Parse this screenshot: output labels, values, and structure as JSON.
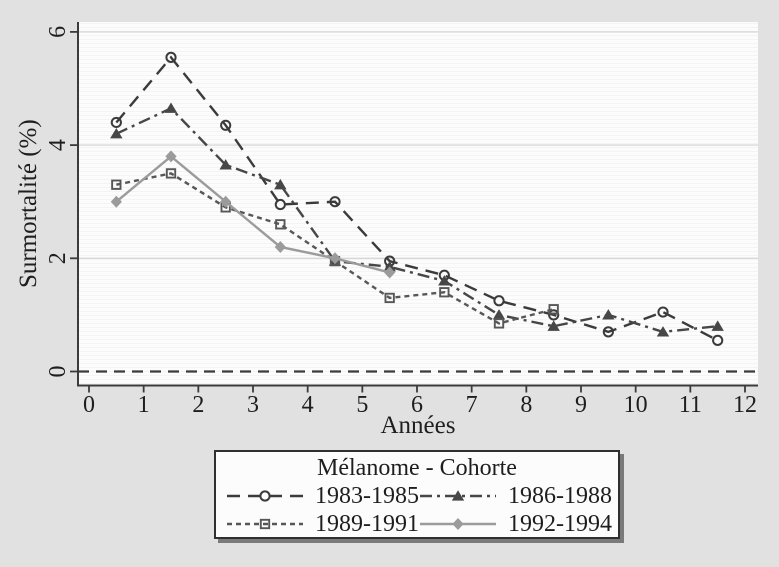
{
  "figure": {
    "background_color": "#e1e1e1",
    "plot_background_color": "#fcfcfc",
    "grid_color": "#d8d8d8",
    "axis_color": "#3b3b3b",
    "text_color": "#1e1e1e",
    "legend_shadow_color": "#7a7a7a"
  },
  "chart_data": {
    "type": "line",
    "title": "",
    "xlabel": "Années",
    "ylabel": "Surmortalité (%)",
    "xlim": [
      -0.2,
      12.2
    ],
    "ylim": [
      -0.25,
      6.25
    ],
    "x_ticks": [
      0,
      1,
      2,
      3,
      4,
      5,
      6,
      7,
      8,
      9,
      10,
      11,
      12
    ],
    "y_ticks": [
      0,
      2,
      4,
      6
    ],
    "grid": "horizontal-at-y-2-4-6",
    "reference_line_y": 0,
    "reference_line_style": "dashed",
    "legend": {
      "title": "Mélanome - Cohorte",
      "position": "below-chart",
      "columns": 2
    },
    "series": [
      {
        "name": "1983-1985",
        "color": "#3b3b3b",
        "line_style": "longdash",
        "marker": "circle-open",
        "x": [
          0.5,
          1.5,
          2.5,
          3.5,
          4.5,
          5.5,
          6.5,
          7.5,
          8.5,
          9.5,
          10.5,
          11.5
        ],
        "y": [
          4.4,
          5.55,
          4.35,
          2.95,
          3.0,
          1.95,
          1.7,
          1.25,
          1.0,
          0.7,
          1.05,
          0.55
        ]
      },
      {
        "name": "1986-1988",
        "color": "#474747",
        "line_style": "dashdot",
        "marker": "triangle-filled",
        "x": [
          0.5,
          1.5,
          2.5,
          3.5,
          4.5,
          5.5,
          6.5,
          7.5,
          8.5,
          9.5,
          10.5,
          11.5
        ],
        "y": [
          4.2,
          4.65,
          3.65,
          3.3,
          1.95,
          1.85,
          1.6,
          1.0,
          0.8,
          1.0,
          0.7,
          0.8
        ]
      },
      {
        "name": "1989-1991",
        "color": "#575757",
        "line_style": "shortdash",
        "marker": "square-open",
        "x": [
          0.5,
          1.5,
          2.5,
          3.5,
          4.5,
          5.5,
          6.5,
          7.5,
          8.5
        ],
        "y": [
          3.3,
          3.5,
          2.9,
          2.6,
          1.95,
          1.3,
          1.4,
          0.85,
          1.1
        ]
      },
      {
        "name": "1992-1994",
        "color": "#9b9b9b",
        "line_style": "solid",
        "marker": "diamond-filled",
        "x": [
          0.5,
          1.5,
          2.5,
          3.5,
          4.5,
          5.5
        ],
        "y": [
          3.0,
          3.8,
          3.0,
          2.2,
          2.0,
          1.75
        ]
      }
    ]
  }
}
